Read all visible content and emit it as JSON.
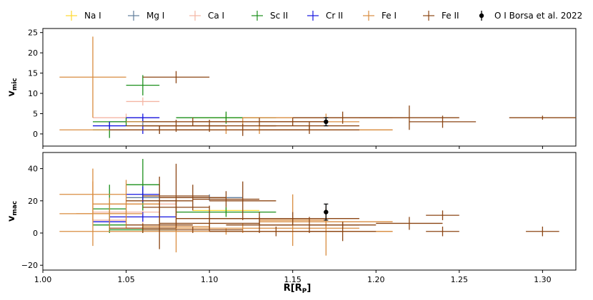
{
  "chart_data": {
    "type": "scatter",
    "xlabel_main": "R[R",
    "xlabel_sub": "P",
    "xlabel_end": "]",
    "xlim": [
      1.0,
      1.32
    ],
    "xticks": [
      "1.00",
      "1.05",
      "1.10",
      "1.15",
      "1.20",
      "1.25",
      "1.30"
    ],
    "legend": [
      {
        "name": "Na I",
        "color": "#ffd92f",
        "marker": "cross"
      },
      {
        "name": "Mg I",
        "color": "#607d9b",
        "marker": "cross"
      },
      {
        "name": "Ca I",
        "color": "#f4b6a4",
        "marker": "cross"
      },
      {
        "name": "Sc II",
        "color": "#1a8f1a",
        "marker": "cross"
      },
      {
        "name": "Cr II",
        "color": "#1414e0",
        "marker": "cross"
      },
      {
        "name": "Fe I",
        "color": "#d98c3f",
        "marker": "cross"
      },
      {
        "name": "Fe II",
        "color": "#8b4513",
        "marker": "cross"
      },
      {
        "name": "O I Borsa et al. 2022",
        "color": "#000000",
        "marker": "dot"
      }
    ],
    "panels": [
      {
        "ylabel_main": "v",
        "ylabel_sub": "mic",
        "ylim": [
          -3,
          26
        ],
        "yticks": [
          "0",
          "5",
          "10",
          "15",
          "20",
          "25"
        ],
        "series": [
          {
            "name": "Na I",
            "points": [
              [
                1.11,
                4,
                0.02,
                1
              ]
            ]
          },
          {
            "name": "Mg I",
            "points": [
              [
                1.06,
                3,
                0.02,
                1
              ],
              [
                1.07,
                1,
                0.01,
                1
              ]
            ]
          },
          {
            "name": "Ca I",
            "points": [
              [
                1.06,
                8,
                0.01,
                1
              ],
              [
                1.05,
                4,
                0.02,
                1
              ]
            ]
          },
          {
            "name": "Sc II",
            "points": [
              [
                1.06,
                12,
                0.01,
                2.5
              ],
              [
                1.05,
                3,
                0.02,
                1
              ],
              [
                1.04,
                1,
                0.01,
                2
              ],
              [
                1.11,
                4,
                0.03,
                1.5
              ]
            ]
          },
          {
            "name": "Cr II",
            "points": [
              [
                1.06,
                4,
                0.01,
                1
              ],
              [
                1.04,
                2,
                0.01,
                1
              ],
              [
                1.06,
                1,
                0.02,
                1
              ]
            ]
          },
          {
            "name": "Fe I",
            "points": [
              [
                1.03,
                14,
                0.02,
                10
              ],
              [
                1.11,
                1,
                0.1,
                1
              ],
              [
                1.12,
                3,
                0.07,
                1
              ],
              [
                1.17,
                4,
                0.05,
                1
              ],
              [
                1.13,
                1,
                0.08,
                1
              ]
            ]
          },
          {
            "name": "Fe II",
            "points": [
              [
                1.08,
                14,
                0.02,
                1.5
              ],
              [
                1.13,
                3,
                0.04,
                1
              ],
              [
                1.18,
                4,
                0.03,
                1.5
              ],
              [
                1.22,
                4,
                0.03,
                3
              ],
              [
                1.24,
                3,
                0.02,
                1.5
              ],
              [
                1.3,
                4,
                0.02,
                0.5
              ],
              [
                1.16,
                2,
                0.03,
                1
              ],
              [
                1.12,
                1,
                0.04,
                1.5
              ],
              [
                1.08,
                2,
                0.03,
                1.5
              ],
              [
                1.09,
                3,
                0.03,
                1
              ],
              [
                1.16,
                1,
                0.03,
                1
              ],
              [
                1.1,
                2,
                0.04,
                1.5
              ],
              [
                1.07,
                1,
                0.03,
                1
              ],
              [
                1.15,
                3,
                0.02,
                1
              ]
            ]
          },
          {
            "name": "O I Borsa et al. 2022",
            "points": [
              [
                1.17,
                3,
                0,
                1
              ]
            ]
          }
        ]
      },
      {
        "ylabel_main": "v",
        "ylabel_sub": "mac",
        "ylim": [
          -23,
          50
        ],
        "yticks": [
          "−20",
          "0",
          "20",
          "40"
        ],
        "series": [
          {
            "name": "Na I",
            "points": [
              [
                1.11,
                14,
                0.02,
                2
              ]
            ]
          },
          {
            "name": "Mg I",
            "points": [
              [
                1.06,
                22,
                0.01,
                5
              ],
              [
                1.1,
                22,
                0.02,
                2
              ],
              [
                1.07,
                20,
                0.01,
                10
              ]
            ]
          },
          {
            "name": "Ca I",
            "points": [
              [
                1.05,
                13,
                0.02,
                8
              ],
              [
                1.06,
                18,
                0.02,
                15
              ],
              [
                1.04,
                8,
                0.01,
                5
              ]
            ]
          },
          {
            "name": "Sc II",
            "points": [
              [
                1.06,
                30,
                0.01,
                16
              ],
              [
                1.04,
                15,
                0.01,
                15
              ],
              [
                1.11,
                13,
                0.03,
                3
              ],
              [
                1.06,
                2,
                0.02,
                2
              ],
              [
                1.04,
                5,
                0.01,
                3
              ]
            ]
          },
          {
            "name": "Cr II",
            "points": [
              [
                1.06,
                24,
                0.01,
                5
              ],
              [
                1.06,
                10,
                0.02,
                3
              ],
              [
                1.04,
                7,
                0.01,
                2
              ]
            ]
          },
          {
            "name": "Fe I",
            "points": [
              [
                1.03,
                24,
                0.02,
                16
              ],
              [
                1.03,
                12,
                0.02,
                20
              ],
              [
                1.11,
                1,
                0.1,
                2
              ],
              [
                1.12,
                3,
                0.07,
                3
              ],
              [
                1.17,
                7,
                0.04,
                4
              ],
              [
                1.15,
                8,
                0.02,
                16
              ],
              [
                1.05,
                18,
                0.02,
                15
              ],
              [
                1.04,
                12,
                0.02,
                10
              ],
              [
                1.08,
                4,
                0.02,
                16
              ],
              [
                1.17,
                1,
                0.04,
                15
              ]
            ]
          },
          {
            "name": "Fe II",
            "points": [
              [
                1.08,
                23,
                0.02,
                20
              ],
              [
                1.07,
                20,
                0.02,
                15
              ],
              [
                1.09,
                22,
                0.02,
                8
              ],
              [
                1.1,
                9,
                0.02,
                8
              ],
              [
                1.11,
                21,
                0.02,
                5
              ],
              [
                1.12,
                20,
                0.02,
                12
              ],
              [
                1.1,
                6,
                0.03,
                3
              ],
              [
                1.13,
                5,
                0.02,
                5
              ],
              [
                1.13,
                9,
                0.03,
                4
              ],
              [
                1.15,
                9,
                0.04,
                4
              ],
              [
                1.16,
                5,
                0.03,
                5
              ],
              [
                1.18,
                5,
                0.02,
                2
              ],
              [
                1.18,
                1,
                0.02,
                6
              ],
              [
                1.22,
                6,
                0.02,
                4
              ],
              [
                1.24,
                11,
                0.01,
                3
              ],
              [
                1.24,
                1,
                0.01,
                3
              ],
              [
                1.3,
                1,
                0.01,
                3
              ],
              [
                1.08,
                16,
                0.02,
                5
              ],
              [
                1.09,
                2,
                0.03,
                2
              ],
              [
                1.14,
                1,
                0.04,
                3
              ],
              [
                1.07,
                5,
                0.02,
                15
              ],
              [
                1.06,
                3,
                0.02,
                3
              ]
            ]
          },
          {
            "name": "O I Borsa et al. 2022",
            "points": [
              [
                1.17,
                13,
                0,
                5
              ]
            ]
          }
        ]
      }
    ]
  }
}
